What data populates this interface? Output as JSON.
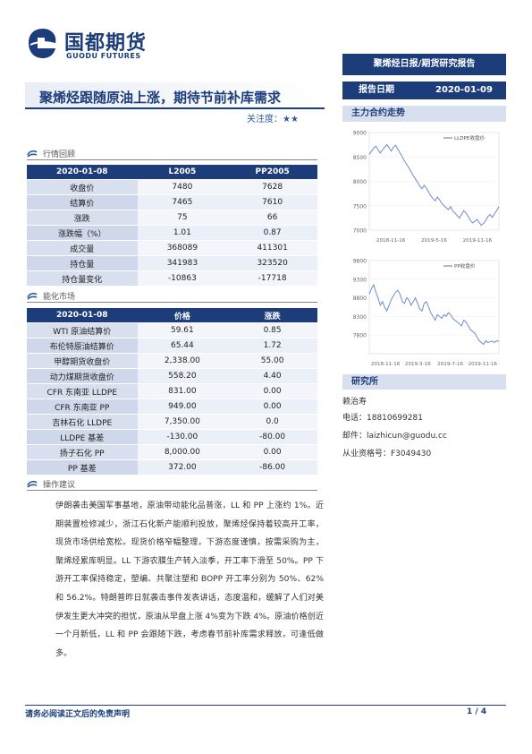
{
  "header": {
    "logo_cn": "国都期货",
    "logo_en": "GUODU FUTURES",
    "report_type": "聚烯烃日报/期货研究报告",
    "title": "聚烯烃跟随原油上涨，期待节前补库需求",
    "attention_label": "关注度：",
    "attention_stars": "★★",
    "date_label": "报告日期",
    "date_value": "2020-01-09"
  },
  "market_review": {
    "section_title": "行情回顾",
    "columns": [
      "2020-01-08",
      "L2005",
      "PP2005"
    ],
    "rows": [
      [
        "收盘价",
        "7480",
        "7628"
      ],
      [
        "结算价",
        "7465",
        "7610"
      ],
      [
        "涨跌",
        "75",
        "66"
      ],
      [
        "涨跌幅（%）",
        "1.01",
        "0.87"
      ],
      [
        "成交量",
        "368089",
        "411301"
      ],
      [
        "持仓量",
        "341983",
        "323520"
      ],
      [
        "持仓量变化",
        "-10863",
        "-17718"
      ]
    ]
  },
  "energy_market": {
    "section_title": "能化市场",
    "columns": [
      "2020-01-08",
      "价格",
      "涨跌"
    ],
    "rows": [
      [
        "WTI 原油结算价",
        "59.61",
        "0.85"
      ],
      [
        "布伦特原油结算价",
        "65.44",
        "1.72"
      ],
      [
        "甲醇期货收盘价",
        "2,338.00",
        "55.00"
      ],
      [
        "动力煤期货收盘价",
        "558.20",
        "4.40"
      ],
      [
        "CFR 东南亚 LLDPE",
        "831.00",
        "0.00"
      ],
      [
        "CFR 东南亚 PP",
        "949.00",
        "0.00"
      ],
      [
        "吉林石化 LLDPE",
        "7,350.00",
        "0.0"
      ],
      [
        "LLDPE 基差",
        "-130.00",
        "-80.00"
      ],
      [
        "扬子石化 PP",
        "8,000.00",
        "0.00"
      ],
      [
        "PP 基差",
        "372.00",
        "-86.00"
      ]
    ]
  },
  "advice": {
    "section_title": "操作建议",
    "text": "伊朗袭击美国军事基地，原油带动能化品普涨，LL 和 PP 上涨约 1%。近期装置检修减少，浙江石化新产能顺利投放，聚烯烃保持着较高开工率，现货市场供给宽松。现货价格窄幅整理，下游态度谨慎，按需采购为主，聚烯烃累库明显。LL 下游农膜生产转入淡季，开工率下滑至 50%。PP 下游开工率保持稳定，塑编、共聚注塑和 BOPP 开工率分别为 50%、62%和 56.2%。特朗普昨日就袭击事件发表讲话，态度温和，缓解了人们对美伊发生更大冲突的担忧，原油从早盘上涨 4%变为下跌 4%。原油价格创近一个月新低，LL 和 PP 会跟随下跌，考虑春节前补库需求释放，可逢低做多。"
  },
  "charts_section_title": "主力合约走势",
  "chart_data": [
    {
      "type": "line",
      "title": "",
      "series": [
        {
          "name": "LLDPE收盘价",
          "values": [
            8550,
            8620,
            8680,
            8720,
            8650,
            8580,
            8640,
            8700,
            8750,
            8690,
            8620,
            8700,
            8740,
            8660,
            8580,
            8500,
            8420,
            8350,
            8280,
            8200,
            8120,
            8050,
            7980,
            7900,
            7850,
            7920,
            7860,
            7780,
            7700,
            7650,
            7600,
            7680,
            7620,
            7550,
            7500,
            7460,
            7420,
            7480,
            7390,
            7350,
            7300,
            7250,
            7320,
            7400,
            7350,
            7280,
            7200,
            7150,
            7180,
            7220,
            7160,
            7100,
            7140,
            7200,
            7280,
            7320,
            7260,
            7340,
            7400,
            7480
          ]
        }
      ],
      "x_ticks": [
        "2018-11-16",
        "2019-5-16",
        "2019-11-16"
      ],
      "ylim": [
        7000,
        9000
      ],
      "y_ticks": [
        "9000",
        "8500",
        "8000",
        "7500",
        "7000"
      ],
      "legend": "top-right",
      "color": "#6a8cc7"
    },
    {
      "type": "line",
      "title": "",
      "series": [
        {
          "name": "PP收盘价",
          "values": [
            8900,
            9050,
            9150,
            8950,
            8800,
            8600,
            8700,
            8550,
            8450,
            8600,
            8750,
            8850,
            8950,
            9000,
            8900,
            8700,
            8650,
            8800,
            8750,
            8600,
            8700,
            8800,
            8650,
            8500,
            8450,
            8650,
            8700,
            8550,
            8400,
            8300,
            8200,
            8350,
            8300,
            8250,
            8350,
            8300,
            8400,
            8350,
            8250,
            8200,
            8150,
            8100,
            8050,
            8200,
            8150,
            8050,
            7950,
            7900,
            7850,
            7750,
            7650,
            7600,
            7550,
            7650,
            7600,
            7620,
            7640,
            7600,
            7650,
            7628
          ]
        }
      ],
      "x_ticks": [
        "2018-11-16",
        "2019-3-16",
        "2019-7-16",
        "2019-11-16"
      ],
      "ylim": [
        7300,
        9800
      ],
      "y_ticks": [
        "9800",
        "9300",
        "8800",
        "8300",
        "7800"
      ],
      "legend": "top-right",
      "color": "#6a8cc7"
    }
  ],
  "research": {
    "section_title": "研究所",
    "name": "赖治寿",
    "phone": "电话：18810699281",
    "email": "邮件：laizhicun@guodu.cc",
    "license": "从业资格号：F3049430"
  },
  "footer": {
    "disclaimer": "请务必阅读正文后的免责声明",
    "page": "1 / 4"
  }
}
